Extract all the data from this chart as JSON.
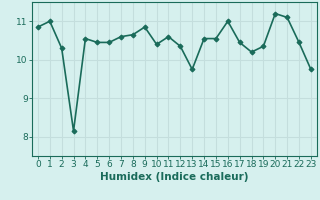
{
  "x": [
    0,
    1,
    2,
    3,
    4,
    5,
    6,
    7,
    8,
    9,
    10,
    11,
    12,
    13,
    14,
    15,
    16,
    17,
    18,
    19,
    20,
    21,
    22,
    23
  ],
  "y": [
    10.85,
    11.0,
    10.3,
    8.15,
    10.55,
    10.45,
    10.45,
    10.6,
    10.65,
    10.85,
    10.4,
    10.6,
    10.35,
    9.75,
    10.55,
    10.55,
    11.0,
    10.45,
    10.2,
    10.35,
    11.2,
    11.1,
    10.45,
    9.75
  ],
  "line_color": "#1a6b5a",
  "marker": "D",
  "bg_color": "#d6f0ee",
  "grid_color": "#c4dedd",
  "xlabel": "Humidex (Indice chaleur)",
  "ylim": [
    7.5,
    11.5
  ],
  "xlim": [
    -0.5,
    23.5
  ],
  "yticks": [
    8,
    9,
    10,
    11
  ],
  "xticks": [
    0,
    1,
    2,
    3,
    4,
    5,
    6,
    7,
    8,
    9,
    10,
    11,
    12,
    13,
    14,
    15,
    16,
    17,
    18,
    19,
    20,
    21,
    22,
    23
  ],
  "font_size": 6.5,
  "xlabel_fontsize": 7.5,
  "linewidth": 1.2,
  "markersize": 2.5
}
